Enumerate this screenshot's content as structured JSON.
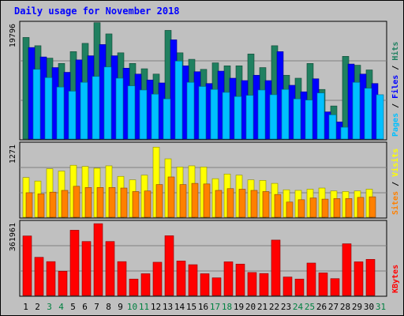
{
  "chart_data": [
    {
      "type": "bar",
      "title": "Daily usage for November 2018",
      "y_max_label": "19796",
      "ylim": [
        0,
        19796
      ],
      "legend": [
        "Pages",
        "Files",
        "Hits"
      ],
      "series": [
        {
          "name": "Hits",
          "color": "#208060",
          "values": [
            17200,
            15800,
            13700,
            12800,
            14800,
            16200,
            19700,
            17800,
            14600,
            12800,
            11900,
            11000,
            18400,
            14600,
            13500,
            11800,
            12900,
            12400,
            12400,
            14400,
            12100,
            15800,
            10800,
            10300,
            12800,
            8400,
            5600,
            14000,
            12500,
            11700
          ]
        },
        {
          "name": "Files",
          "color": "#0000ff",
          "values": [
            15500,
            13900,
            12100,
            11300,
            13400,
            14100,
            16000,
            14100,
            12000,
            11000,
            10000,
            9500,
            16800,
            12400,
            11400,
            9400,
            11500,
            10300,
            9900,
            10800,
            9900,
            14800,
            9100,
            8000,
            10200,
            4600,
            2900,
            12700,
            11000,
            9400
          ]
        },
        {
          "name": "Pages",
          "color": "#00c0ff",
          "values": [
            11800,
            10400,
            8800,
            8100,
            9600,
            10600,
            12200,
            10300,
            9000,
            8300,
            7600,
            6800,
            13200,
            9600,
            8900,
            8400,
            7900,
            7200,
            7400,
            8300,
            7500,
            8400,
            6800,
            6600,
            7800,
            4100,
            2000,
            9600,
            8600,
            7500
          ]
        }
      ]
    },
    {
      "type": "bar",
      "y_max_label": "1271",
      "ylim": [
        0,
        1271
      ],
      "legend": [
        "Sites",
        "Visits"
      ],
      "series": [
        {
          "name": "Visits",
          "color": "#ffff00",
          "values": [
            680,
            620,
            830,
            790,
            890,
            870,
            840,
            880,
            700,
            640,
            720,
            1200,
            1000,
            860,
            880,
            860,
            660,
            740,
            720,
            640,
            630,
            580,
            470,
            460,
            480,
            500,
            450,
            440,
            450,
            480
          ]
        },
        {
          "name": "Sites",
          "color": "#ff8000",
          "values": [
            420,
            400,
            430,
            460,
            530,
            510,
            510,
            510,
            500,
            440,
            450,
            560,
            690,
            560,
            580,
            570,
            460,
            490,
            480,
            460,
            440,
            390,
            260,
            300,
            330,
            310,
            320,
            320,
            340,
            350
          ]
        }
      ]
    },
    {
      "type": "bar",
      "y_max_label": "361961",
      "ylim": [
        0,
        361961
      ],
      "legend": [
        "KBytes"
      ],
      "series": [
        {
          "name": "KBytes",
          "color": "#ff0000",
          "values": [
            290000,
            186000,
            165000,
            118000,
            318000,
            263000,
            350000,
            263000,
            165000,
            80000,
            106000,
            162000,
            291000,
            168000,
            150000,
            106000,
            86000,
            164000,
            153000,
            112000,
            107000,
            270000,
            90000,
            80000,
            158000,
            110000,
            82000,
            252000,
            164000,
            176000
          ]
        }
      ]
    }
  ],
  "x_axis": {
    "days": [
      "1",
      "2",
      "3",
      "4",
      "5",
      "6",
      "7",
      "8",
      "9",
      "10",
      "11",
      "12",
      "13",
      "14",
      "15",
      "16",
      "17",
      "18",
      "19",
      "20",
      "21",
      "22",
      "23",
      "24",
      "25",
      "26",
      "27",
      "28",
      "29",
      "30",
      "31"
    ],
    "weekend_days": [
      "3",
      "4",
      "10",
      "11",
      "17",
      "18",
      "24",
      "25",
      "31"
    ]
  }
}
